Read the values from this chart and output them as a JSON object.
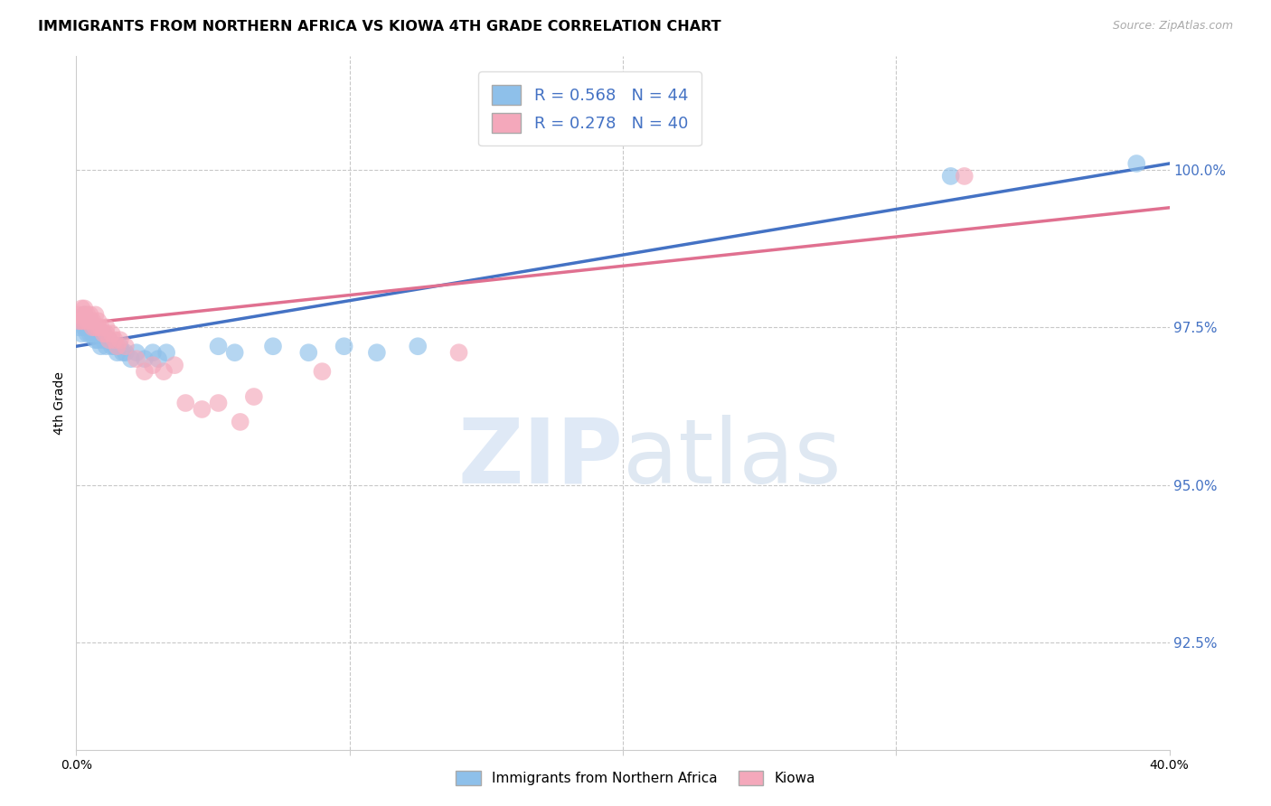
{
  "title": "IMMIGRANTS FROM NORTHERN AFRICA VS KIOWA 4TH GRADE CORRELATION CHART",
  "source": "Source: ZipAtlas.com",
  "ylabel": "4th Grade",
  "yaxis_values": [
    1.0,
    0.975,
    0.95,
    0.925
  ],
  "xmin": 0.0,
  "xmax": 0.4,
  "ymin": 0.908,
  "ymax": 1.018,
  "watermark_zip": "ZIP",
  "watermark_atlas": "atlas",
  "legend_blue_r": "R = 0.568",
  "legend_blue_n": "N = 44",
  "legend_pink_r": "R = 0.278",
  "legend_pink_n": "N = 40",
  "blue_color": "#8ec0ea",
  "pink_color": "#f4a8bb",
  "blue_line_color": "#4472c4",
  "pink_line_color": "#e07090",
  "blue_line_x0": 0.0,
  "blue_line_y0": 0.972,
  "blue_line_x1": 0.4,
  "blue_line_y1": 1.001,
  "pink_line_x0": 0.0,
  "pink_line_y0": 0.9755,
  "pink_line_x1": 0.4,
  "pink_line_y1": 0.994,
  "blue_x": [
    0.001,
    0.002,
    0.002,
    0.003,
    0.003,
    0.003,
    0.004,
    0.004,
    0.005,
    0.005,
    0.005,
    0.006,
    0.006,
    0.007,
    0.007,
    0.008,
    0.008,
    0.009,
    0.009,
    0.01,
    0.01,
    0.011,
    0.012,
    0.013,
    0.014,
    0.015,
    0.016,
    0.017,
    0.018,
    0.02,
    0.022,
    0.025,
    0.028,
    0.03,
    0.033,
    0.052,
    0.058,
    0.072,
    0.085,
    0.098,
    0.11,
    0.125,
    0.32,
    0.388
  ],
  "blue_y": [
    0.975,
    0.974,
    0.976,
    0.975,
    0.976,
    0.977,
    0.974,
    0.975,
    0.974,
    0.975,
    0.976,
    0.974,
    0.975,
    0.973,
    0.975,
    0.973,
    0.974,
    0.972,
    0.974,
    0.973,
    0.974,
    0.972,
    0.973,
    0.972,
    0.972,
    0.971,
    0.972,
    0.971,
    0.971,
    0.97,
    0.971,
    0.97,
    0.971,
    0.97,
    0.971,
    0.972,
    0.971,
    0.972,
    0.971,
    0.972,
    0.971,
    0.972,
    0.999,
    1.001
  ],
  "pink_x": [
    0.001,
    0.001,
    0.002,
    0.002,
    0.003,
    0.003,
    0.003,
    0.004,
    0.004,
    0.005,
    0.005,
    0.006,
    0.006,
    0.007,
    0.007,
    0.008,
    0.008,
    0.009,
    0.01,
    0.011,
    0.011,
    0.012,
    0.013,
    0.014,
    0.015,
    0.016,
    0.018,
    0.022,
    0.025,
    0.028,
    0.032,
    0.036,
    0.04,
    0.046,
    0.052,
    0.06,
    0.065,
    0.09,
    0.14,
    0.325
  ],
  "pink_y": [
    0.976,
    0.977,
    0.976,
    0.978,
    0.976,
    0.977,
    0.978,
    0.976,
    0.977,
    0.976,
    0.977,
    0.975,
    0.976,
    0.975,
    0.977,
    0.975,
    0.976,
    0.975,
    0.974,
    0.975,
    0.974,
    0.973,
    0.974,
    0.973,
    0.972,
    0.973,
    0.972,
    0.97,
    0.968,
    0.969,
    0.968,
    0.969,
    0.963,
    0.962,
    0.963,
    0.96,
    0.964,
    0.968,
    0.971,
    0.999
  ]
}
